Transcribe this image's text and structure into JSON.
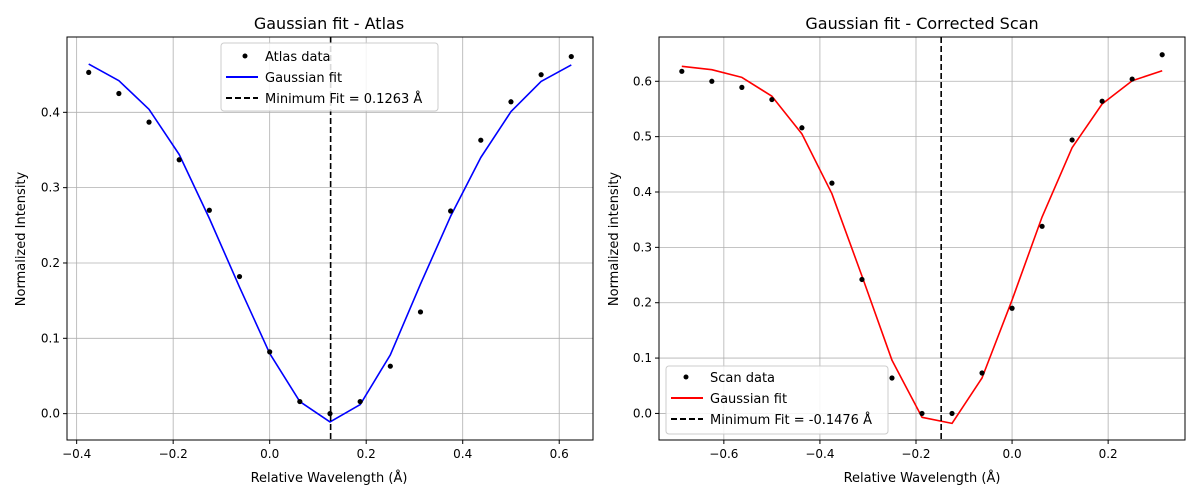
{
  "chart_data": [
    {
      "type": "line",
      "title": "Gaussian fit - Atlas",
      "xlabel": "Relative Wavelength (Å)",
      "ylabel": "Normalized Intensity",
      "xlim": [
        -0.42,
        0.67
      ],
      "ylim": [
        -0.035,
        0.5
      ],
      "xticks": [
        -0.4,
        -0.2,
        0.0,
        0.2,
        0.4,
        0.6
      ],
      "yticks": [
        0.0,
        0.1,
        0.2,
        0.3,
        0.4
      ],
      "xtick_labels": [
        "−0.4",
        "−0.2",
        "0.0",
        "0.2",
        "0.4",
        "0.6"
      ],
      "ytick_labels": [
        "0.0",
        "0.1",
        "0.2",
        "0.3",
        "0.4"
      ],
      "grid": true,
      "legend_position": "top-center",
      "vline": 0.1263,
      "series": [
        {
          "name": "Atlas data",
          "kind": "scatter",
          "color": "#000000",
          "x": [
            -0.375,
            -0.3125,
            -0.25,
            -0.1875,
            -0.125,
            -0.0625,
            0.0,
            0.0625,
            0.125,
            0.1875,
            0.25,
            0.3125,
            0.375,
            0.4375,
            0.5,
            0.5625,
            0.625
          ],
          "y": [
            0.453,
            0.425,
            0.387,
            0.337,
            0.27,
            0.182,
            0.082,
            0.016,
            0.0,
            0.016,
            0.063,
            0.135,
            0.269,
            0.363,
            0.414,
            0.45,
            0.474
          ]
        },
        {
          "name": "Gaussian fit",
          "kind": "line",
          "color": "#0000ff",
          "x": [
            -0.375,
            -0.3125,
            -0.25,
            -0.1875,
            -0.125,
            -0.0625,
            0.0,
            0.0625,
            0.125,
            0.1875,
            0.25,
            0.3125,
            0.375,
            0.4375,
            0.5,
            0.5625,
            0.625
          ],
          "y": [
            0.464,
            0.442,
            0.404,
            0.344,
            0.259,
            0.168,
            0.08,
            0.016,
            -0.011,
            0.012,
            0.078,
            0.172,
            0.262,
            0.34,
            0.401,
            0.441,
            0.463
          ]
        },
        {
          "name": "Minimum Fit = 0.1263 Å",
          "kind": "vline",
          "color": "#000000"
        }
      ]
    },
    {
      "type": "line",
      "title": "Gaussian fit - Corrected Scan",
      "xlabel": "Relative Wavelength (Å)",
      "ylabel": "Normalized intensity",
      "xlim": [
        -0.735,
        0.36
      ],
      "ylim": [
        -0.048,
        0.68
      ],
      "xticks": [
        -0.6,
        -0.4,
        -0.2,
        0.0,
        0.2
      ],
      "yticks": [
        0.0,
        0.1,
        0.2,
        0.3,
        0.4,
        0.5,
        0.6
      ],
      "xtick_labels": [
        "−0.6",
        "−0.4",
        "−0.2",
        "0.0",
        "0.2"
      ],
      "ytick_labels": [
        "0.0",
        "0.1",
        "0.2",
        "0.3",
        "0.4",
        "0.5",
        "0.6"
      ],
      "grid": true,
      "legend_position": "bottom-left",
      "vline": -0.1476,
      "series": [
        {
          "name": "Scan data",
          "kind": "scatter",
          "color": "#000000",
          "x": [
            -0.6875,
            -0.625,
            -0.5625,
            -0.5,
            -0.4375,
            -0.375,
            -0.3125,
            -0.25,
            -0.1875,
            -0.125,
            -0.0625,
            0.0,
            0.0625,
            0.125,
            0.1875,
            0.25,
            0.3125
          ],
          "y": [
            0.618,
            0.6,
            0.589,
            0.567,
            0.516,
            0.416,
            0.242,
            0.064,
            0.0,
            0.0,
            0.073,
            0.19,
            0.338,
            0.494,
            0.564,
            0.604,
            0.648
          ]
        },
        {
          "name": "Gaussian fit",
          "kind": "line",
          "color": "#ff0000",
          "x": [
            -0.6875,
            -0.625,
            -0.5625,
            -0.5,
            -0.4375,
            -0.375,
            -0.3125,
            -0.25,
            -0.1875,
            -0.125,
            -0.0625,
            0.0,
            0.0625,
            0.125,
            0.1875,
            0.25,
            0.3125
          ],
          "y": [
            0.627,
            0.621,
            0.607,
            0.573,
            0.505,
            0.397,
            0.248,
            0.096,
            -0.007,
            -0.018,
            0.064,
            0.205,
            0.355,
            0.48,
            0.559,
            0.601,
            0.619
          ]
        },
        {
          "name": "Minimum Fit = -0.1476 Å",
          "kind": "vline",
          "color": "#000000"
        }
      ]
    }
  ]
}
